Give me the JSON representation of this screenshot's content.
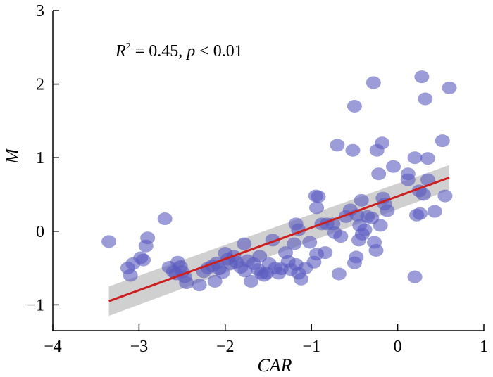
{
  "chart_data": {
    "type": "scatter",
    "xlabel": "CAR",
    "ylabel": "M",
    "xlim": [
      -4,
      1
    ],
    "ylim": [
      -1.35,
      3
    ],
    "xticks": [
      "−4",
      "−3",
      "−2",
      "−1",
      "0",
      "1"
    ],
    "yticks": [
      "−1",
      "0",
      "1",
      "2",
      "3"
    ],
    "annotation": {
      "r_symbol": "R",
      "r_exp": "2",
      "value_part": " = 0.45, ",
      "p_symbol": "p",
      "p_part": " < 0.01"
    },
    "grid": false,
    "point_color": "#5a5abf",
    "fit_color": "#cc1f1f",
    "ci_color": "#c8c8c8",
    "fit_line": {
      "x": [
        -3.35,
        0.6
      ],
      "y": [
        -0.95,
        0.73
      ]
    },
    "ci_band": {
      "upper": [
        -0.75,
        0.9
      ],
      "lower": [
        -1.15,
        0.56
      ]
    },
    "points": [
      [
        -3.35,
        -0.14
      ],
      [
        -3.13,
        -0.5
      ],
      [
        -3.1,
        -0.6
      ],
      [
        -3.07,
        -0.44
      ],
      [
        -2.98,
        -0.36
      ],
      [
        -2.95,
        -0.39
      ],
      [
        -2.92,
        -0.2
      ],
      [
        -2.9,
        -0.09
      ],
      [
        -2.7,
        0.17
      ],
      [
        -2.65,
        -0.49
      ],
      [
        -2.6,
        -0.55
      ],
      [
        -2.57,
        -0.58
      ],
      [
        -2.55,
        -0.42
      ],
      [
        -2.52,
        -0.48
      ],
      [
        -2.5,
        -0.55
      ],
      [
        -2.47,
        -0.62
      ],
      [
        -2.45,
        -0.7
      ],
      [
        -2.3,
        -0.73
      ],
      [
        -2.25,
        -0.55
      ],
      [
        -2.2,
        -0.5
      ],
      [
        -2.15,
        -0.47
      ],
      [
        -2.12,
        -0.68
      ],
      [
        -2.1,
        -0.43
      ],
      [
        -2.07,
        -0.51
      ],
      [
        -2.03,
        -0.56
      ],
      [
        -2.0,
        -0.3
      ],
      [
        -1.97,
        -0.38
      ],
      [
        -1.94,
        -0.44
      ],
      [
        -1.9,
        -0.34
      ],
      [
        -1.87,
        -0.42
      ],
      [
        -1.82,
        -0.49
      ],
      [
        -1.78,
        -0.17
      ],
      [
        -1.77,
        -0.54
      ],
      [
        -1.74,
        -0.4
      ],
      [
        -1.7,
        -0.68
      ],
      [
        -1.67,
        -0.44
      ],
      [
        -1.62,
        -0.52
      ],
      [
        -1.6,
        -0.34
      ],
      [
        -1.58,
        -0.57
      ],
      [
        -1.55,
        -0.6
      ],
      [
        -1.52,
        -0.57
      ],
      [
        -1.49,
        -0.44
      ],
      [
        -1.45,
        -0.12
      ],
      [
        -1.42,
        -0.5
      ],
      [
        -1.38,
        -0.57
      ],
      [
        -1.35,
        -0.51
      ],
      [
        -1.3,
        -0.29
      ],
      [
        -1.27,
        -0.41
      ],
      [
        -1.24,
        -0.52
      ],
      [
        -1.2,
        -0.17
      ],
      [
        -1.18,
        -0.45
      ],
      [
        -1.15,
        -0.57
      ],
      [
        -1.12,
        -0.65
      ],
      [
        -1.18,
        0.1
      ],
      [
        -1.15,
        0.02
      ],
      [
        -1.07,
        -0.5
      ],
      [
        -1.02,
        -0.15
      ],
      [
        -0.97,
        -0.42
      ],
      [
        -0.94,
        -0.31
      ],
      [
        -0.95,
        0.48
      ],
      [
        -0.94,
        0.32
      ],
      [
        -0.92,
        0.47
      ],
      [
        -0.88,
        0.1
      ],
      [
        -0.84,
        -0.29
      ],
      [
        -0.82,
        0.1
      ],
      [
        -0.75,
        0.1
      ],
      [
        -0.73,
        -0.02
      ],
      [
        -0.7,
        1.17
      ],
      [
        -0.68,
        -0.58
      ],
      [
        -0.66,
        -0.07
      ],
      [
        -0.6,
        0.2
      ],
      [
        -0.55,
        0.29
      ],
      [
        -0.52,
        1.1
      ],
      [
        -0.5,
        1.7
      ],
      [
        -0.5,
        -0.43
      ],
      [
        -0.48,
        -0.35
      ],
      [
        -0.47,
        0.22
      ],
      [
        -0.45,
        -0.12
      ],
      [
        -0.44,
        0.08
      ],
      [
        -0.42,
        0.42
      ],
      [
        -0.41,
        -0.04
      ],
      [
        -0.38,
        0.02
      ],
      [
        -0.35,
        0.2
      ],
      [
        -0.3,
        0.18
      ],
      [
        -0.28,
        2.02
      ],
      [
        -0.27,
        -0.15
      ],
      [
        -0.25,
        -0.26
      ],
      [
        -0.24,
        1.1
      ],
      [
        -0.22,
        0.78
      ],
      [
        -0.2,
        0.08
      ],
      [
        -0.18,
        1.2
      ],
      [
        -0.17,
        0.45
      ],
      [
        -0.15,
        0.37
      ],
      [
        -0.12,
        0.28
      ],
      [
        -0.05,
        0.88
      ],
      [
        0.12,
        0.7
      ],
      [
        0.12,
        0.78
      ],
      [
        0.2,
        -0.62
      ],
      [
        0.2,
        1.0
      ],
      [
        0.22,
        0.22
      ],
      [
        0.25,
        0.55
      ],
      [
        0.26,
        0.24
      ],
      [
        0.28,
        2.1
      ],
      [
        0.3,
        0.5
      ],
      [
        0.32,
        1.8
      ],
      [
        0.35,
        0.99
      ],
      [
        0.35,
        0.7
      ],
      [
        0.43,
        0.27
      ],
      [
        0.52,
        1.23
      ],
      [
        0.55,
        0.48
      ],
      [
        0.6,
        1.95
      ]
    ]
  }
}
